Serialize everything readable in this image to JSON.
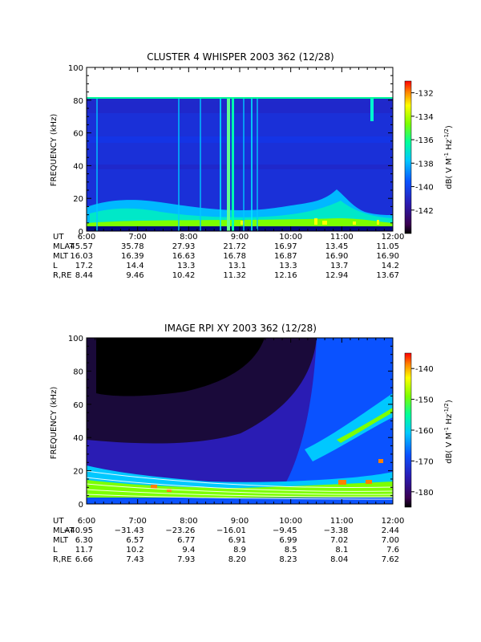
{
  "chart_data": [
    {
      "type": "heatmap",
      "title": "CLUSTER 4 WHISPER 2003 362 (12/28)",
      "ylabel": "FREQUENCY (kHz)",
      "ylim": [
        0,
        100
      ],
      "yticks": [
        "0",
        "20",
        "40",
        "60",
        "80",
        "100"
      ],
      "xlim": [
        "6:00",
        "12:00"
      ],
      "data_freq_max_khz": 80,
      "colorbar": {
        "label": "dB( V M",
        "label_sup1": "-1",
        "label_mid": " Hz",
        "label_sup2": "-1/2",
        "label_end": ")",
        "range": [
          -144,
          -131
        ],
        "ticks": [
          "-132",
          "-134",
          "-136",
          "-138",
          "-140",
          "-142"
        ]
      },
      "features": {
        "vertical_emission_times_hours": [
          6.2,
          7.75,
          8.22,
          8.62,
          8.78,
          8.82,
          9.05,
          9.22,
          9.33,
          11.58
        ],
        "dominant_level_db": -141
      },
      "ephemeris": {
        "labels": [
          "UT",
          "MLAT",
          "MLT",
          "L",
          "R,RE"
        ],
        "times": [
          "6:00",
          "7:00",
          "8:00",
          "9:00",
          "10:00",
          "11:00",
          "12:00"
        ],
        "rows": [
          [
            "45.57",
            "35.78",
            "27.93",
            "21.72",
            "16.97",
            "13.45",
            "11.05"
          ],
          [
            "16.03",
            "16.39",
            "16.63",
            "16.78",
            "16.87",
            "16.90",
            "16.90"
          ],
          [
            "17.2",
            "14.4",
            "13.3",
            "13.1",
            "13.3",
            "13.7",
            "14.2"
          ],
          [
            "8.44",
            "9.46",
            "10.42",
            "11.32",
            "12.16",
            "12.94",
            "13.67"
          ]
        ]
      }
    },
    {
      "type": "heatmap",
      "title": "IMAGE RPI XY 2003 362 (12/28)",
      "ylabel": "FREQUENCY (kHz)",
      "ylim": [
        0,
        100
      ],
      "yticks": [
        "0",
        "20",
        "40",
        "60",
        "80",
        "100"
      ],
      "xlim": [
        "6:00",
        "12:00"
      ],
      "colorbar": {
        "label": "dB( V M",
        "label_sup1": "-1",
        "label_mid": " Hz",
        "label_sup2": "-1/2",
        "label_end": ")",
        "range": [
          -185,
          -135
        ],
        "ticks": [
          "-140",
          "-150",
          "-160",
          "-170",
          "-180"
        ]
      },
      "features": {
        "gyro_lines_khz_at_6h": [
          20,
          16,
          12,
          9,
          6
        ],
        "gyro_lines_khz_at_12h": [
          10,
          8,
          6,
          4.5,
          3
        ]
      },
      "ephemeris": {
        "labels": [
          "UT",
          "MLAT",
          "MLT",
          "L",
          "R,RE"
        ],
        "times": [
          "6:00",
          "7:00",
          "8:00",
          "9:00",
          "10:00",
          "11:00",
          "12:00"
        ],
        "rows": [
          [
            "−40.95",
            "−31.43",
            "−23.26",
            "−16.01",
            "−9.45",
            "−3.38",
            "2.44"
          ],
          [
            "6.30",
            "6.57",
            "6.77",
            "6.91",
            "6.99",
            "7.02",
            "7.00"
          ],
          [
            "11.7",
            "10.2",
            "9.4",
            "8.9",
            "8.5",
            "8.1",
            "7.6"
          ],
          [
            "6.66",
            "7.43",
            "7.93",
            "8.20",
            "8.23",
            "8.04",
            "7.62"
          ]
        ]
      }
    }
  ]
}
